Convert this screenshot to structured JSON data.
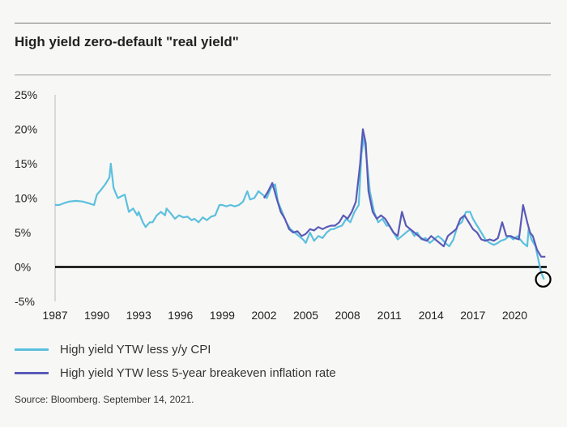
{
  "title": "High yield zero-default \"real yield\"",
  "source": "Source: Bloomberg. September 14, 2021.",
  "colors": {
    "cpi_series": "#5bc0de",
    "breakeven_series": "#5a5ab8",
    "zero_line": "#000000",
    "axis_text": "#222222"
  },
  "chart_data": {
    "type": "line",
    "title": "High yield zero-default \"real yield\"",
    "xlabel": "",
    "ylabel": "",
    "xlim": [
      1987,
      2022.3
    ],
    "ylim": [
      -5,
      25
    ],
    "x_ticks": [
      "1987",
      "1990",
      "1993",
      "1996",
      "1999",
      "2002",
      "2005",
      "2008",
      "2011",
      "2014",
      "2017",
      "2020"
    ],
    "y_ticks": [
      "25%",
      "20%",
      "15%",
      "10%",
      "5%",
      "0%",
      "-5%"
    ],
    "grid": false,
    "legend_position": "bottom-left",
    "annotation": "circle around latest negative reading",
    "series": [
      {
        "name": "High yield YTW less y/y CPI",
        "x": [
          1987.0,
          1987.3,
          1987.7,
          1988.0,
          1988.5,
          1989.0,
          1989.5,
          1989.8,
          1990.0,
          1990.3,
          1990.6,
          1990.9,
          1991.0,
          1991.2,
          1991.5,
          1991.8,
          1992.0,
          1992.3,
          1992.6,
          1992.9,
          1993.0,
          1993.3,
          1993.5,
          1993.8,
          1994.0,
          1994.3,
          1994.6,
          1994.9,
          1995.0,
          1995.3,
          1995.6,
          1995.9,
          1996.2,
          1996.5,
          1996.8,
          1997.0,
          1997.3,
          1997.6,
          1997.9,
          1998.2,
          1998.5,
          1998.8,
          1999.0,
          1999.3,
          1999.6,
          1999.9,
          2000.2,
          2000.5,
          2000.8,
          2001.0,
          2001.3,
          2001.6,
          2001.9,
          2002.2,
          2002.5,
          2002.8,
          2003.0,
          2003.3,
          2003.6,
          2003.9,
          2004.2,
          2004.5,
          2004.8,
          2005.0,
          2005.3,
          2005.6,
          2005.9,
          2006.2,
          2006.5,
          2006.8,
          2007.0,
          2007.3,
          2007.6,
          2007.9,
          2008.2,
          2008.5,
          2008.8,
          2009.0,
          2009.2,
          2009.4,
          2009.6,
          2009.9,
          2010.2,
          2010.5,
          2010.8,
          2011.0,
          2011.3,
          2011.6,
          2011.9,
          2012.2,
          2012.5,
          2012.8,
          2013.0,
          2013.3,
          2013.6,
          2013.9,
          2014.2,
          2014.5,
          2014.8,
          2015.0,
          2015.3,
          2015.6,
          2015.9,
          2016.2,
          2016.5,
          2016.8,
          2017.0,
          2017.3,
          2017.6,
          2017.9,
          2018.2,
          2018.5,
          2018.8,
          2019.0,
          2019.3,
          2019.6,
          2019.9,
          2020.2,
          2020.4,
          2020.6,
          2020.9,
          2021.0,
          2021.2,
          2021.5,
          2021.7,
          2021.9,
          2022.1
        ],
        "y": [
          9.0,
          9.0,
          9.3,
          9.5,
          9.6,
          9.5,
          9.2,
          9.0,
          10.5,
          11.2,
          12.0,
          13.0,
          15.0,
          11.5,
          10.0,
          10.3,
          10.5,
          8.0,
          8.5,
          7.5,
          8.0,
          6.5,
          5.8,
          6.5,
          6.5,
          7.5,
          8.0,
          7.5,
          8.5,
          7.8,
          7.0,
          7.5,
          7.2,
          7.3,
          6.8,
          7.0,
          6.5,
          7.2,
          6.8,
          7.3,
          7.5,
          9.0,
          9.0,
          8.8,
          9.0,
          8.8,
          9.0,
          9.5,
          11.0,
          9.8,
          10.0,
          11.0,
          10.5,
          10.0,
          11.5,
          12.0,
          9.5,
          8.0,
          6.5,
          5.5,
          5.0,
          4.5,
          4.0,
          3.5,
          5.0,
          3.8,
          4.5,
          4.2,
          5.0,
          5.5,
          5.5,
          5.8,
          6.0,
          7.0,
          6.5,
          8.0,
          9.0,
          16.5,
          19.0,
          15.0,
          11.0,
          8.0,
          6.5,
          7.0,
          6.0,
          6.0,
          5.0,
          4.0,
          4.5,
          5.0,
          5.5,
          4.5,
          5.0,
          4.0,
          4.2,
          3.5,
          4.0,
          4.5,
          4.0,
          3.5,
          3.0,
          4.0,
          6.0,
          6.5,
          8.0,
          8.0,
          7.0,
          6.0,
          5.0,
          4.0,
          3.5,
          3.2,
          3.5,
          3.8,
          4.0,
          4.5,
          4.0,
          4.5,
          4.0,
          3.5,
          3.0,
          5.5,
          4.0,
          3.0,
          1.0,
          -0.8,
          -1.8
        ]
      },
      {
        "name": "High yield YTW less 5-year breakeven inflation rate",
        "x": [
          2002.0,
          2002.3,
          2002.6,
          2002.9,
          2003.2,
          2003.5,
          2003.8,
          2004.1,
          2004.4,
          2004.7,
          2005.0,
          2005.3,
          2005.6,
          2005.9,
          2006.2,
          2006.5,
          2006.8,
          2007.1,
          2007.4,
          2007.7,
          2008.0,
          2008.3,
          2008.6,
          2008.9,
          2009.1,
          2009.3,
          2009.5,
          2009.8,
          2010.1,
          2010.4,
          2010.7,
          2011.0,
          2011.3,
          2011.6,
          2011.9,
          2012.2,
          2012.5,
          2012.8,
          2013.1,
          2013.4,
          2013.7,
          2014.0,
          2014.3,
          2014.6,
          2014.9,
          2015.2,
          2015.5,
          2015.8,
          2016.1,
          2016.4,
          2016.7,
          2017.0,
          2017.3,
          2017.6,
          2017.9,
          2018.2,
          2018.5,
          2018.8,
          2019.1,
          2019.4,
          2019.7,
          2020.0,
          2020.3,
          2020.6,
          2020.9,
          2021.1,
          2021.3,
          2021.6,
          2021.9,
          2022.2
        ],
        "y": [
          10.0,
          11.0,
          12.2,
          10.0,
          8.0,
          7.0,
          5.5,
          5.0,
          5.2,
          4.5,
          4.8,
          5.5,
          5.3,
          5.8,
          5.5,
          5.8,
          6.0,
          6.0,
          6.5,
          7.5,
          7.0,
          8.0,
          9.5,
          15.0,
          20.0,
          18.0,
          11.0,
          8.0,
          7.0,
          7.5,
          7.0,
          6.0,
          5.0,
          4.5,
          8.0,
          6.0,
          5.5,
          5.0,
          4.5,
          4.0,
          3.8,
          4.5,
          4.0,
          3.5,
          3.0,
          4.5,
          5.0,
          5.5,
          7.0,
          7.5,
          6.5,
          5.5,
          5.0,
          4.0,
          3.8,
          4.0,
          3.8,
          4.2,
          6.5,
          4.5,
          4.5,
          4.2,
          4.0,
          9.0,
          6.5,
          5.0,
          4.5,
          2.5,
          1.5,
          1.5
        ]
      }
    ]
  }
}
